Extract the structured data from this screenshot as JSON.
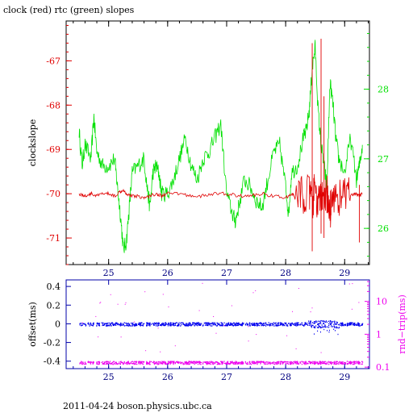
{
  "title": "clock (red) rtc (green) slopes",
  "footer": "2011-04-24 boson.physics.ubc.ca",
  "colors": {
    "clock": "#e00000",
    "rtc": "#00e000",
    "offset": "#0000ee",
    "roundtrip": "#ee00ee"
  },
  "chart_data": [
    {
      "type": "line",
      "ylabel": "clockslope",
      "xlim": [
        24.28,
        29.42
      ],
      "ylim": [
        -71.6,
        -66.1
      ],
      "x_ticks": [
        25,
        26,
        27,
        28,
        29
      ],
      "y_ticks": [
        -67,
        -68,
        -69,
        -70,
        -71
      ],
      "y2lim": [
        25.48,
        28.98
      ],
      "y2_ticks": [
        26,
        27,
        28
      ],
      "series": [
        {
          "axis": "left",
          "color": "#e00000",
          "x": [
            24.5,
            24.6,
            24.7,
            24.8,
            24.9,
            25.0,
            25.1,
            25.2,
            25.25,
            25.3,
            25.4,
            25.5,
            25.6,
            25.7,
            25.8,
            25.9,
            26.0,
            26.2,
            26.4,
            26.6,
            26.8,
            27.0,
            27.2,
            27.4,
            27.6,
            27.8,
            28.0,
            28.1,
            28.2,
            28.3,
            28.4,
            28.45,
            28.5,
            28.55,
            28.6,
            28.65,
            28.7,
            28.75,
            28.8,
            28.9,
            29.0,
            29.1,
            29.2,
            29.25,
            29.3
          ],
          "y": [
            -70.0,
            -70.05,
            -70.0,
            -70.05,
            -70.0,
            -70.0,
            -70.05,
            -69.95,
            -69.9,
            -70.0,
            -70.05,
            -70.05,
            -70.1,
            -70.05,
            -70.0,
            -70.05,
            -70.0,
            -70.0,
            -70.05,
            -70.05,
            -70.0,
            -70.0,
            -70.05,
            -70.05,
            -70.0,
            -70.05,
            -70.1,
            -70.0,
            -70.1,
            -70.0,
            -70.0,
            -70.2,
            -69.9,
            -70.3,
            -70.0,
            -70.3,
            -70.0,
            -70.4,
            -70.0,
            -70.1,
            -70.0,
            -70.05,
            -70.0,
            -70.05,
            -70.0
          ]
        },
        {
          "axis": "right",
          "color": "#00e000",
          "x": [
            24.5,
            24.55,
            24.6,
            24.7,
            24.75,
            24.8,
            24.9,
            25.0,
            25.1,
            25.15,
            25.2,
            25.25,
            25.3,
            25.35,
            25.4,
            25.5,
            25.6,
            25.65,
            25.7,
            25.75,
            25.8,
            25.85,
            25.9,
            26.0,
            26.1,
            26.2,
            26.3,
            26.4,
            26.5,
            26.6,
            26.7,
            26.8,
            26.9,
            27.0,
            27.1,
            27.15,
            27.2,
            27.3,
            27.4,
            27.5,
            27.6,
            27.7,
            27.8,
            27.9,
            28.0,
            28.05,
            28.1,
            28.2,
            28.3,
            28.35,
            28.4,
            28.45,
            28.5,
            28.55,
            28.6,
            28.65,
            28.7,
            28.75,
            28.8,
            28.85,
            28.9,
            29.0,
            29.1,
            29.2,
            29.25,
            29.3
          ],
          "y": [
            27.4,
            26.9,
            27.2,
            27.0,
            27.6,
            27.1,
            26.9,
            26.9,
            27.0,
            26.6,
            26.2,
            25.7,
            25.8,
            26.3,
            26.8,
            26.9,
            27.0,
            26.6,
            26.3,
            26.8,
            26.9,
            26.8,
            26.5,
            26.5,
            26.7,
            27.0,
            27.3,
            26.9,
            26.7,
            27.0,
            27.1,
            27.3,
            27.5,
            26.5,
            26.2,
            26.1,
            26.3,
            26.7,
            26.6,
            26.4,
            26.3,
            26.7,
            27.1,
            27.2,
            26.6,
            26.2,
            26.8,
            26.9,
            27.3,
            27.4,
            27.7,
            28.3,
            28.6,
            27.7,
            27.2,
            26.9,
            26.6,
            28.1,
            27.8,
            27.3,
            27.0,
            26.8,
            27.3,
            26.7,
            26.9,
            27.2
          ]
        }
      ]
    },
    {
      "type": "scatter",
      "ylabel": "offset(ms)",
      "y2label": "rnd−trip(ms)",
      "xlim": [
        24.28,
        29.42
      ],
      "ylim": [
        -0.48,
        0.47
      ],
      "x_ticks": [
        25,
        26,
        27,
        28,
        29
      ],
      "y_ticks": [
        0.4,
        0.2,
        0,
        -0.2,
        -0.4
      ],
      "y2_scale": "log",
      "y2lim": [
        0.09,
        45
      ],
      "y2_ticks": [
        10,
        1,
        0.1
      ],
      "series": [
        {
          "axis": "left",
          "color": "#0000ee",
          "x": [
            24.5,
            29.3
          ],
          "y": [
            0.0,
            0.0
          ]
        },
        {
          "axis": "right",
          "color": "#ee00ee",
          "x": [
            24.5,
            29.3
          ],
          "y": [
            0.14,
            0.14
          ]
        }
      ]
    }
  ]
}
